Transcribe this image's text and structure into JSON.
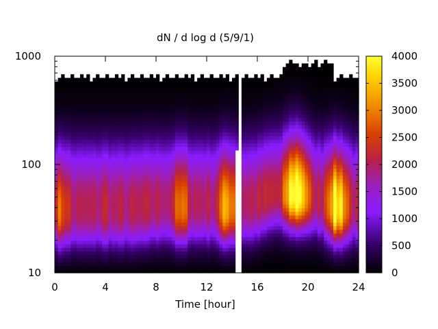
{
  "chart_data": {
    "type": "heatmap",
    "title": "dN / d log d (5/9/1)",
    "xlabel": "Time [hour]",
    "ylabel": "",
    "x_range": [
      0,
      24
    ],
    "x_ticks": [
      0,
      4,
      8,
      12,
      16,
      20,
      24
    ],
    "y_scale": "log",
    "y_range": [
      10,
      1000
    ],
    "y_ticks": [
      10,
      100,
      1000
    ],
    "colorbar": {
      "range": [
        0,
        4000
      ],
      "ticks": [
        0,
        500,
        1000,
        1500,
        2000,
        2500,
        3000,
        3500,
        4000
      ],
      "palette": [
        "#000000",
        "#5b00a0",
        "#8a1cff",
        "#a31f8a",
        "#c2300a",
        "#e06a00",
        "#f5b800",
        "#ffff33"
      ]
    },
    "gap_segments": [
      {
        "x_start": 14.5,
        "x_end": 14.75,
        "y_top": 800
      },
      {
        "x_start": 14.25,
        "x_end": 14.5,
        "y_top": 135
      }
    ],
    "peaks": [
      {
        "time": 0.5,
        "diameter": 32,
        "value": 2300
      },
      {
        "time": 4.0,
        "diameter": 32,
        "value": 1700
      },
      {
        "time": 10.0,
        "diameter": 35,
        "value": 2300
      },
      {
        "time": 13.7,
        "diameter": 35,
        "value": 2800
      },
      {
        "time": 19.1,
        "diameter": 50,
        "value": 3700
      },
      {
        "time": 22.3,
        "diameter": 35,
        "value": 3500
      }
    ]
  }
}
